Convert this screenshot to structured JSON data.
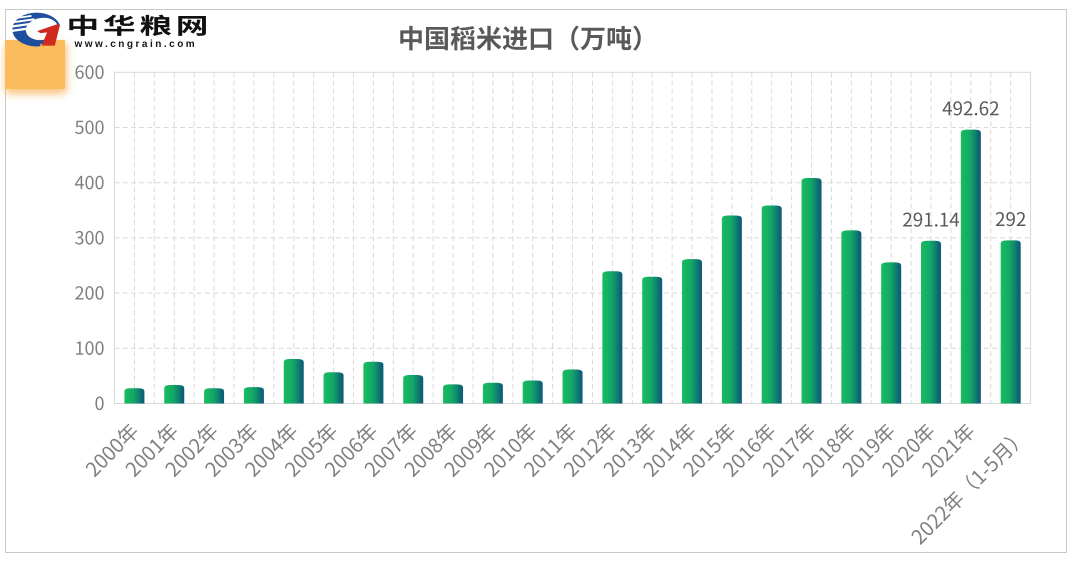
{
  "figure": {
    "type": "chart-image",
    "background": "#ffffff",
    "border_color": "#c8c8c8"
  },
  "logo": {
    "name": "中华粮网",
    "url": "www.cngrain.com",
    "mark_colors": {
      "blue": "#1f4f9c",
      "red": "#d02a20"
    },
    "accent_square_color": "#fbbc5e"
  },
  "chart_data": {
    "type": "bar",
    "title": "中国稻米进口（万吨）",
    "categories": [
      "2000年",
      "2001年",
      "2002年",
      "2003年",
      "2004年",
      "2005年",
      "2006年",
      "2007年",
      "2008年",
      "2009年",
      "2010年",
      "2011年",
      "2012年",
      "2013年",
      "2014年",
      "2015年",
      "2016年",
      "2017年",
      "2018年",
      "2019年",
      "2020年",
      "2021年",
      "2022年（1-5月）"
    ],
    "values": [
      24,
      30,
      24,
      26,
      77,
      53,
      72,
      48,
      31,
      34,
      38,
      58,
      236,
      226,
      258,
      337,
      355,
      405,
      310,
      252,
      291.14,
      492.62,
      292
    ],
    "data_labels": [
      {
        "index": 20,
        "text": "291.14"
      },
      {
        "index": 21,
        "text": "492.62"
      },
      {
        "index": 22,
        "text": "292"
      }
    ],
    "xlabel": "",
    "ylabel": "",
    "ylim": [
      0,
      600
    ],
    "yticks": [
      0,
      100,
      200,
      300,
      400,
      500,
      600
    ],
    "grid": "dashed",
    "legend_position": "none",
    "bar_gradient": [
      "#17bd5e",
      "#0d5c77"
    ],
    "title_color": "#595959",
    "tick_color": "#7f7f7f",
    "data_label_color": "#595959",
    "grid_color": "#d9d9d9"
  }
}
